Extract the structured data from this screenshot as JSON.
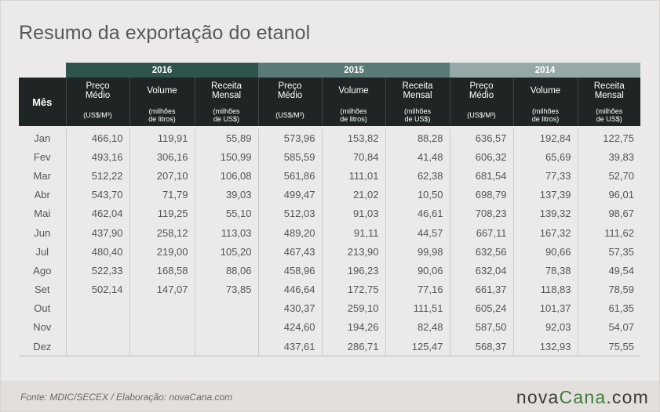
{
  "title": "Resumo da exportação do etanol",
  "years": [
    "2016",
    "2015",
    "2014"
  ],
  "col_label": "Mês",
  "metrics": [
    {
      "name_l1": "Preço",
      "name_l2": "Médio",
      "unit_l1": "(US$/M³)",
      "unit_l2": ""
    },
    {
      "name_l1": "Volume",
      "name_l2": "",
      "unit_l1": "(milhões",
      "unit_l2": "de litros)"
    },
    {
      "name_l1": "Receita",
      "name_l2": "Mensal",
      "unit_l1": "(milhões",
      "unit_l2": "de US$)"
    }
  ],
  "rows": [
    {
      "mes": "Jan",
      "vals": [
        "466,10",
        "119,91",
        "55,89",
        "573,96",
        "153,82",
        "88,28",
        "636,57",
        "192,84",
        "122,75"
      ]
    },
    {
      "mes": "Fev",
      "vals": [
        "493,16",
        "306,16",
        "150,99",
        "585,59",
        "70,84",
        "41,48",
        "606,32",
        "65,69",
        "39,83"
      ]
    },
    {
      "mes": "Mar",
      "vals": [
        "512,22",
        "207,10",
        "106,08",
        "561,86",
        "111,01",
        "62,38",
        "681,54",
        "77,33",
        "52,70"
      ]
    },
    {
      "mes": "Abr",
      "vals": [
        "543,70",
        "71,79",
        "39,03",
        "499,47",
        "21,02",
        "10,50",
        "698,79",
        "137,39",
        "96,01"
      ]
    },
    {
      "mes": "Mai",
      "vals": [
        "462,04",
        "119,25",
        "55,10",
        "512,03",
        "91,03",
        "46,61",
        "708,23",
        "139,32",
        "98,67"
      ]
    },
    {
      "mes": "Jun",
      "vals": [
        "437,90",
        "258,12",
        "113,03",
        "489,20",
        "91,11",
        "44,57",
        "667,11",
        "167,32",
        "111,62"
      ]
    },
    {
      "mes": "Jul",
      "vals": [
        "480,40",
        "219,00",
        "105,20",
        "467,43",
        "213,90",
        "99,98",
        "632,56",
        "90,66",
        "57,35"
      ]
    },
    {
      "mes": "Ago",
      "vals": [
        "522,33",
        "168,58",
        "88,06",
        "458,96",
        "196,23",
        "90,06",
        "632,04",
        "78,38",
        "49,54"
      ]
    },
    {
      "mes": "Set",
      "vals": [
        "502,14",
        "147,07",
        "73,85",
        "446,64",
        "172,75",
        "77,16",
        "661,37",
        "118,83",
        "78,59"
      ]
    },
    {
      "mes": "Out",
      "vals": [
        "",
        "",
        "",
        "430,37",
        "259,10",
        "111,51",
        "605,24",
        "101,37",
        "61,35"
      ]
    },
    {
      "mes": "Nov",
      "vals": [
        "",
        "",
        "",
        "424,60",
        "194,26",
        "82,48",
        "587,50",
        "92,03",
        "54,07"
      ]
    },
    {
      "mes": "Dez",
      "vals": [
        "",
        "",
        "",
        "437,61",
        "286,71",
        "125,47",
        "568,37",
        "132,93",
        "75,55"
      ]
    }
  ],
  "footer": {
    "source": "Fonte: MDIC/SECEX  / Elaboração: novaCana.com",
    "logo_main": "nova",
    "logo_accent": "Cana",
    "logo_suffix": ".com"
  }
}
